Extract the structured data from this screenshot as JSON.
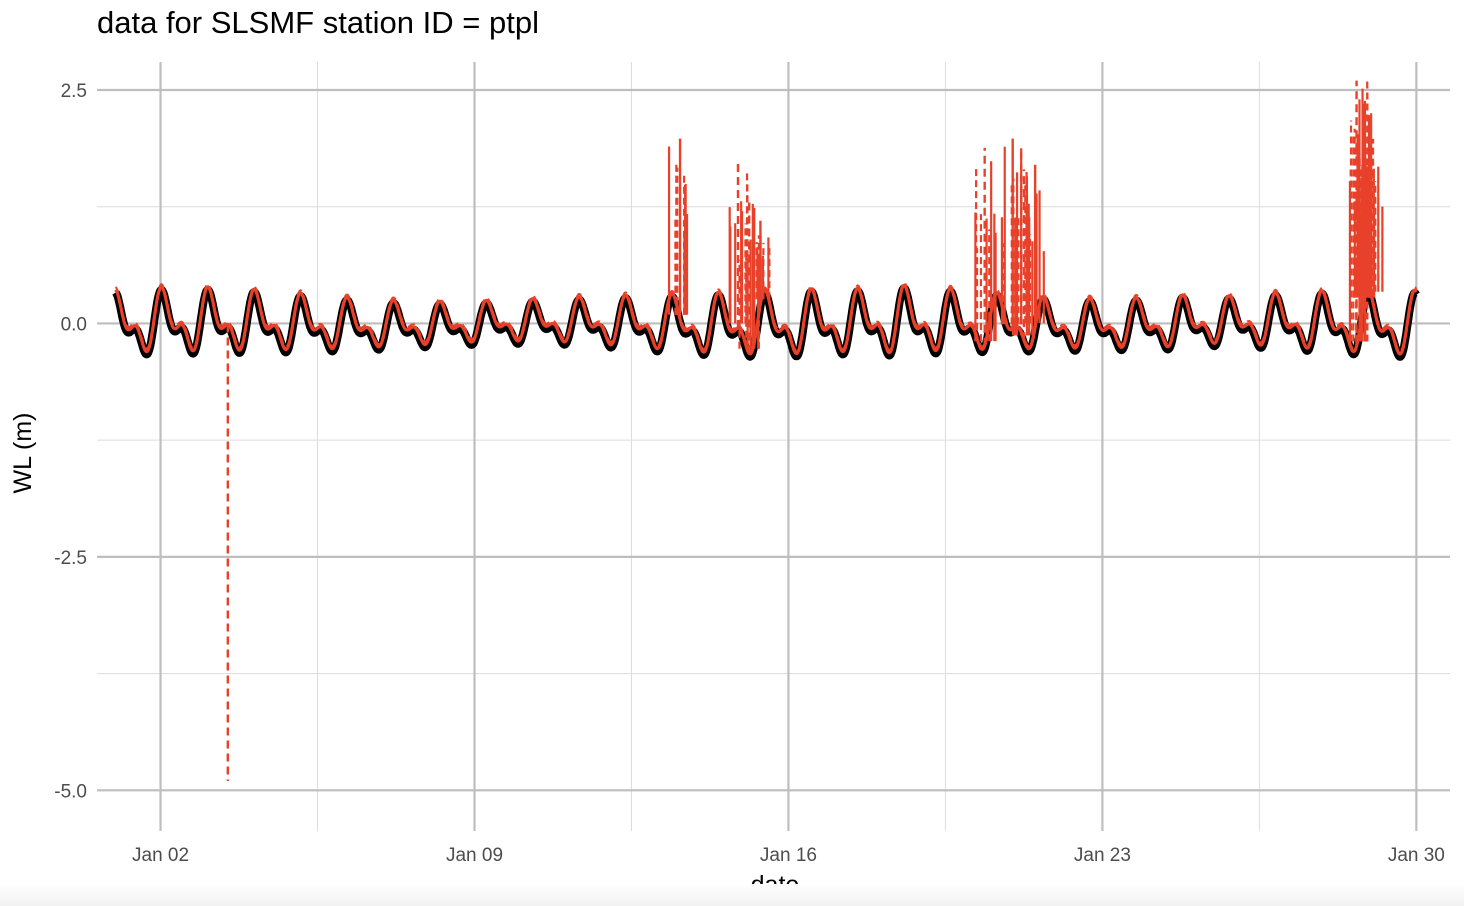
{
  "chart_data": {
    "type": "line",
    "title": "data for SLSMF station ID = ptpl",
    "xlabel": "date",
    "ylabel": "WL (m)",
    "x_range": [
      "2024-12-31T14:00",
      "2025-01-30T18:00"
    ],
    "ylim": [
      -5.35,
      2.8
    ],
    "x_ticks": [
      {
        "date": "2025-01-02",
        "label": "Jan 02"
      },
      {
        "date": "2025-01-09",
        "label": "Jan 09"
      },
      {
        "date": "2025-01-16",
        "label": "Jan 16"
      },
      {
        "date": "2025-01-23",
        "label": "Jan 23"
      },
      {
        "date": "2025-01-30",
        "label": "Jan 30"
      }
    ],
    "x_minor_ticks": [
      "2025-01-05T12:00",
      "2025-01-12T12:00",
      "2025-01-19T12:00",
      "2025-01-26T12:00"
    ],
    "y_ticks": [
      {
        "value": 2.5,
        "label": "2.5"
      },
      {
        "value": 0.0,
        "label": "0.0"
      },
      {
        "value": -2.5,
        "label": "-2.5"
      },
      {
        "value": -5.0,
        "label": "-5.0"
      }
    ],
    "y_minor_ticks": [
      1.25,
      -1.25,
      -3.75
    ],
    "grid": true,
    "legend": "none",
    "series_start": "2025-01-01",
    "series_end": "2025-01-30",
    "series": [
      {
        "style": "thick solid",
        "color": "#000000"
      },
      {
        "style": "solid",
        "color": "#e8412a"
      },
      {
        "style": "dashed",
        "color": "#e8412a"
      }
    ],
    "spikes": [
      {
        "date": "2025-01-03T12:00",
        "value": -4.9,
        "style": "dashed"
      },
      {
        "date": "2025-01-13T14:00",
        "value": 1.98,
        "style": "solid"
      },
      {
        "date": "2025-01-14T21:00",
        "value": 1.72,
        "style": "dashed"
      },
      {
        "date": "2025-01-15T03:00",
        "value": 1.35,
        "style": "dashed"
      },
      {
        "date": "2025-01-15T09:00",
        "value": 1.1,
        "style": "solid"
      },
      {
        "date": "2025-01-20T09:00",
        "value": 1.88,
        "style": "dashed"
      },
      {
        "date": "2025-01-21T00:00",
        "value": 1.98,
        "style": "solid"
      },
      {
        "date": "2025-01-21T06:00",
        "value": 1.65,
        "style": "dashed"
      },
      {
        "date": "2025-01-21T12:00",
        "value": 1.7,
        "style": "solid"
      },
      {
        "date": "2025-01-28T16:00",
        "value": 2.6,
        "style": "dashed"
      },
      {
        "date": "2025-01-28T20:00",
        "value": 2.35,
        "style": "solid"
      },
      {
        "date": "2025-01-29T00:00",
        "value": 1.7,
        "style": "dashed"
      }
    ]
  }
}
